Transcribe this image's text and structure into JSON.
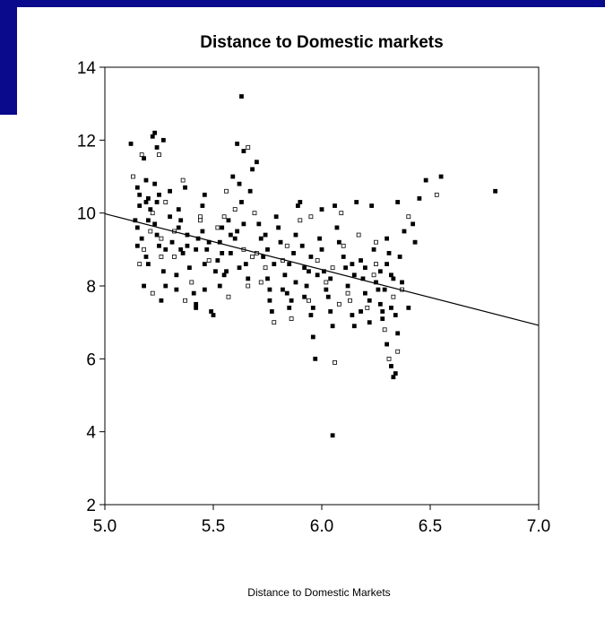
{
  "colors": {
    "slide_accent": "#0a0a8c",
    "ink": "#000000",
    "background": "#ffffff"
  },
  "chart_data": {
    "type": "scatter",
    "title": "Distance to Domestic markets",
    "xlabel": "Distance to Domestic Markets",
    "ylabel": "",
    "xlim": [
      5.0,
      7.0
    ],
    "ylim": [
      2,
      14
    ],
    "x_ticks": [
      5.0,
      5.5,
      6.0,
      6.5,
      7.0
    ],
    "x_tick_labels": [
      "5.0",
      "5.5",
      "6.0",
      "6.5",
      "7.0"
    ],
    "y_ticks": [
      2,
      4,
      6,
      8,
      10,
      12,
      14
    ],
    "y_tick_labels": [
      "2",
      "4",
      "6",
      "8",
      "10",
      "12",
      "14"
    ],
    "grid": false,
    "legend": "none",
    "fit_line": {
      "x": [
        5.0,
        7.0
      ],
      "y": [
        9.98,
        6.92
      ]
    },
    "points_markers": "mixed filled and hollow small markers",
    "points": [
      [
        5.12,
        11.9
      ],
      [
        5.13,
        11.0
      ],
      [
        5.15,
        10.7
      ],
      [
        5.16,
        10.2
      ],
      [
        5.14,
        9.8
      ],
      [
        5.17,
        11.6
      ],
      [
        5.18,
        11.5
      ],
      [
        5.19,
        10.9
      ],
      [
        5.2,
        10.4
      ],
      [
        5.21,
        9.5
      ],
      [
        5.22,
        12.1
      ],
      [
        5.23,
        12.2
      ],
      [
        5.24,
        11.8
      ],
      [
        5.25,
        11.6
      ],
      [
        5.27,
        12.0
      ],
      [
        5.16,
        10.5
      ],
      [
        5.17,
        9.3
      ],
      [
        5.18,
        9.0
      ],
      [
        5.19,
        8.8
      ],
      [
        5.2,
        8.6
      ],
      [
        5.21,
        10.1
      ],
      [
        5.22,
        10.0
      ],
      [
        5.23,
        9.7
      ],
      [
        5.24,
        9.4
      ],
      [
        5.25,
        9.1
      ],
      [
        5.26,
        8.8
      ],
      [
        5.27,
        8.4
      ],
      [
        5.28,
        8.0
      ],
      [
        5.18,
        8.0
      ],
      [
        5.22,
        7.8
      ],
      [
        5.26,
        7.6
      ],
      [
        5.15,
        9.6
      ],
      [
        5.15,
        9.1
      ],
      [
        5.16,
        8.6
      ],
      [
        5.19,
        10.3
      ],
      [
        5.23,
        10.8
      ],
      [
        5.25,
        10.5
      ],
      [
        5.28,
        10.3
      ],
      [
        5.3,
        10.6
      ],
      [
        5.3,
        9.9
      ],
      [
        5.31,
        9.2
      ],
      [
        5.32,
        8.8
      ],
      [
        5.33,
        8.3
      ],
      [
        5.34,
        9.6
      ],
      [
        5.35,
        9.0
      ],
      [
        5.36,
        10.9
      ],
      [
        5.37,
        10.7
      ],
      [
        5.38,
        9.4
      ],
      [
        5.39,
        8.5
      ],
      [
        5.4,
        8.1
      ],
      [
        5.41,
        7.8
      ],
      [
        5.42,
        7.5
      ],
      [
        5.43,
        9.3
      ],
      [
        5.44,
        9.9
      ],
      [
        5.45,
        10.2
      ],
      [
        5.46,
        10.5
      ],
      [
        5.47,
        9.0
      ],
      [
        5.48,
        8.7
      ],
      [
        5.49,
        7.3
      ],
      [
        5.5,
        7.2
      ],
      [
        5.51,
        8.4
      ],
      [
        5.52,
        9.6
      ],
      [
        5.53,
        9.2
      ],
      [
        5.54,
        8.9
      ],
      [
        5.55,
        8.3
      ],
      [
        5.56,
        10.6
      ],
      [
        5.57,
        9.8
      ],
      [
        5.58,
        9.4
      ],
      [
        5.59,
        11.0
      ],
      [
        5.6,
        10.1
      ],
      [
        5.61,
        9.5
      ],
      [
        5.62,
        10.8
      ],
      [
        5.63,
        10.3
      ],
      [
        5.64,
        9.0
      ],
      [
        5.65,
        8.6
      ],
      [
        5.66,
        8.2
      ],
      [
        5.33,
        7.9
      ],
      [
        5.37,
        7.6
      ],
      [
        5.42,
        7.4
      ],
      [
        5.46,
        7.9
      ],
      [
        5.53,
        8.0
      ],
      [
        5.57,
        7.7
      ],
      [
        5.61,
        11.9
      ],
      [
        5.63,
        13.2
      ],
      [
        5.64,
        11.7
      ],
      [
        5.66,
        11.8
      ],
      [
        5.68,
        11.2
      ],
      [
        5.7,
        11.4
      ],
      [
        5.67,
        10.6
      ],
      [
        5.69,
        10.0
      ],
      [
        5.71,
        9.7
      ],
      [
        5.72,
        9.3
      ],
      [
        5.73,
        8.8
      ],
      [
        5.74,
        8.5
      ],
      [
        5.75,
        8.2
      ],
      [
        5.76,
        7.6
      ],
      [
        5.77,
        7.3
      ],
      [
        5.78,
        7.0
      ],
      [
        5.79,
        9.9
      ],
      [
        5.8,
        9.6
      ],
      [
        5.81,
        9.2
      ],
      [
        5.82,
        8.7
      ],
      [
        5.83,
        8.3
      ],
      [
        5.84,
        7.8
      ],
      [
        5.85,
        7.4
      ],
      [
        5.86,
        7.1
      ],
      [
        5.87,
        8.9
      ],
      [
        5.88,
        9.4
      ],
      [
        5.89,
        10.2
      ],
      [
        5.9,
        9.8
      ],
      [
        5.91,
        9.1
      ],
      [
        5.92,
        8.5
      ],
      [
        5.93,
        8.0
      ],
      [
        5.94,
        7.6
      ],
      [
        5.95,
        7.2
      ],
      [
        5.96,
        6.6
      ],
      [
        5.97,
        6.0
      ],
      [
        5.98,
        8.7
      ],
      [
        5.99,
        9.3
      ],
      [
        6.0,
        9.0
      ],
      [
        6.01,
        8.4
      ],
      [
        6.02,
        8.1
      ],
      [
        6.03,
        7.7
      ],
      [
        6.04,
        7.3
      ],
      [
        6.05,
        6.9
      ],
      [
        6.06,
        5.9
      ],
      [
        6.05,
        3.9
      ],
      [
        6.07,
        9.6
      ],
      [
        6.08,
        9.2
      ],
      [
        6.09,
        10.0
      ],
      [
        6.1,
        8.8
      ],
      [
        6.11,
        8.5
      ],
      [
        6.12,
        8.0
      ],
      [
        6.13,
        7.6
      ],
      [
        6.14,
        7.2
      ],
      [
        6.15,
        6.9
      ],
      [
        6.16,
        10.3
      ],
      [
        6.17,
        9.4
      ],
      [
        6.18,
        8.7
      ],
      [
        6.19,
        8.2
      ],
      [
        6.2,
        7.8
      ],
      [
        6.21,
        7.4
      ],
      [
        6.22,
        7.0
      ],
      [
        6.23,
        10.2
      ],
      [
        6.24,
        9.0
      ],
      [
        6.25,
        8.6
      ],
      [
        6.26,
        7.9
      ],
      [
        6.27,
        7.5
      ],
      [
        6.28,
        7.1
      ],
      [
        6.29,
        6.8
      ],
      [
        6.3,
        9.3
      ],
      [
        6.31,
        8.9
      ],
      [
        6.32,
        8.3
      ],
      [
        6.33,
        7.7
      ],
      [
        6.34,
        7.2
      ],
      [
        6.35,
        6.7
      ],
      [
        6.3,
        6.4
      ],
      [
        6.31,
        6.0
      ],
      [
        6.32,
        5.8
      ],
      [
        6.34,
        5.6
      ],
      [
        6.33,
        5.5
      ],
      [
        6.35,
        6.2
      ],
      [
        6.32,
        7.4
      ],
      [
        6.29,
        7.9
      ],
      [
        6.27,
        8.4
      ],
      [
        6.25,
        9.2
      ],
      [
        6.36,
        8.8
      ],
      [
        6.37,
        8.1
      ],
      [
        6.38,
        9.5
      ],
      [
        6.4,
        9.9
      ],
      [
        6.42,
        9.7
      ],
      [
        6.45,
        10.4
      ],
      [
        6.48,
        10.9
      ],
      [
        6.53,
        10.5
      ],
      [
        6.55,
        11.0
      ],
      [
        6.8,
        10.6
      ],
      [
        6.4,
        7.4
      ],
      [
        6.37,
        7.9
      ],
      [
        6.35,
        10.3
      ],
      [
        6.43,
        9.2
      ],
      [
        5.9,
        10.3
      ],
      [
        5.95,
        9.9
      ],
      [
        6.0,
        10.1
      ],
      [
        6.06,
        10.2
      ],
      [
        5.6,
        9.3
      ],
      [
        5.55,
        9.9
      ],
      [
        5.45,
        9.5
      ],
      [
        5.35,
        9.8
      ],
      [
        5.28,
        9.0
      ],
      [
        5.7,
        8.9
      ],
      [
        5.75,
        9.0
      ],
      [
        5.85,
        8.6
      ],
      [
        5.95,
        8.8
      ],
      [
        6.1,
        9.1
      ],
      [
        6.2,
        8.5
      ],
      [
        6.25,
        8.1
      ],
      [
        6.15,
        8.3
      ],
      [
        6.05,
        8.5
      ],
      [
        5.98,
        8.3
      ],
      [
        5.88,
        8.1
      ],
      [
        5.78,
        8.6
      ],
      [
        5.68,
        8.8
      ],
      [
        5.58,
        8.9
      ],
      [
        5.48,
        9.2
      ],
      [
        5.38,
        9.1
      ],
      [
        5.32,
        9.5
      ],
      [
        5.42,
        9.0
      ],
      [
        5.52,
        8.7
      ],
      [
        5.62,
        8.5
      ],
      [
        5.72,
        8.1
      ],
      [
        5.82,
        7.9
      ],
      [
        5.92,
        7.7
      ],
      [
        6.02,
        7.9
      ],
      [
        6.12,
        7.8
      ],
      [
        6.22,
        7.6
      ],
      [
        6.28,
        7.3
      ],
      [
        6.18,
        7.3
      ],
      [
        6.08,
        7.5
      ],
      [
        5.96,
        7.4
      ],
      [
        5.86,
        7.6
      ],
      [
        5.76,
        7.9
      ],
      [
        5.66,
        8.0
      ],
      [
        5.56,
        8.4
      ],
      [
        5.46,
        8.6
      ],
      [
        5.36,
        8.9
      ],
      [
        5.26,
        9.3
      ],
      [
        5.2,
        9.8
      ],
      [
        5.24,
        10.3
      ],
      [
        5.34,
        10.1
      ],
      [
        5.44,
        9.8
      ],
      [
        5.54,
        9.6
      ],
      [
        5.64,
        9.7
      ],
      [
        5.74,
        9.4
      ],
      [
        5.84,
        9.1
      ],
      [
        5.94,
        8.4
      ],
      [
        6.04,
        8.2
      ],
      [
        6.14,
        8.6
      ],
      [
        6.24,
        8.3
      ],
      [
        6.3,
        8.6
      ],
      [
        6.33,
        8.2
      ]
    ]
  }
}
